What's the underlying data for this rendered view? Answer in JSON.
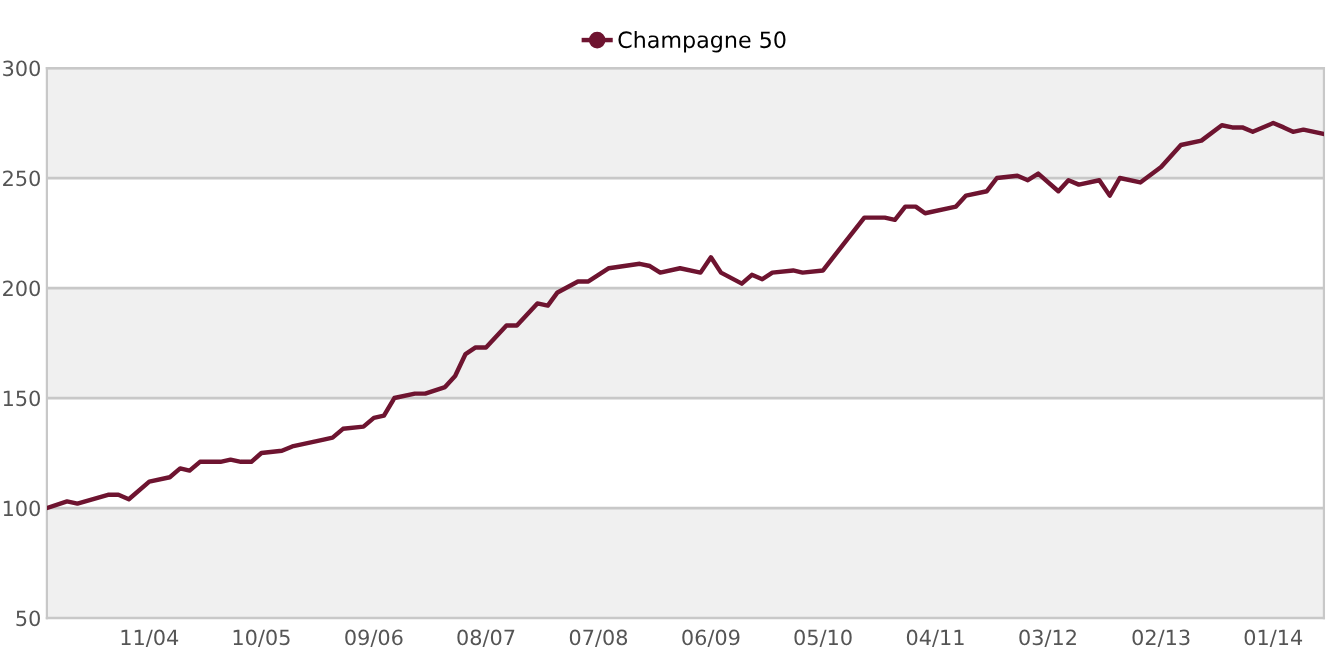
{
  "chart_data": {
    "type": "line",
    "x": [
      "2004-01",
      "2004-03",
      "2004-04",
      "2004-07",
      "2004-08",
      "2004-09",
      "2004-11",
      "2005-01",
      "2005-02",
      "2005-03",
      "2005-04",
      "2005-06",
      "2005-07",
      "2005-08",
      "2005-09",
      "2005-10",
      "2005-12",
      "2006-01",
      "2006-04",
      "2006-05",
      "2006-06",
      "2006-08",
      "2006-09",
      "2006-10",
      "2006-11",
      "2007-01",
      "2007-02",
      "2007-04",
      "2007-05",
      "2007-06",
      "2007-07",
      "2007-08",
      "2007-10",
      "2007-11",
      "2008-01",
      "2008-02",
      "2008-03",
      "2008-05",
      "2008-06",
      "2008-08",
      "2008-11",
      "2008-12",
      "2009-01",
      "2009-03",
      "2009-05",
      "2009-06",
      "2009-07",
      "2009-09",
      "2009-10",
      "2009-11",
      "2009-12",
      "2010-02",
      "2010-03",
      "2010-05",
      "2010-07",
      "2010-09",
      "2010-11",
      "2010-12",
      "2011-01",
      "2011-02",
      "2011-03",
      "2011-06",
      "2011-07",
      "2011-09",
      "2011-10",
      "2011-12",
      "2012-01",
      "2012-02",
      "2012-04",
      "2012-05",
      "2012-06",
      "2012-08",
      "2012-09",
      "2012-10",
      "2012-12",
      "2013-02",
      "2013-04",
      "2013-06",
      "2013-08",
      "2013-09",
      "2013-10",
      "2013-11",
      "2014-01",
      "2014-02",
      "2014-03",
      "2014-04",
      "2014-06"
    ],
    "series": [
      {
        "name": "Champagne 50",
        "color": "#6e1430",
        "values": [
          100,
          103,
          102,
          106,
          106,
          104,
          112,
          114,
          118,
          117,
          121,
          121,
          122,
          121,
          121,
          125,
          126,
          128,
          131,
          132,
          136,
          137,
          141,
          142,
          150,
          152,
          152,
          155,
          160,
          170,
          173,
          173,
          183,
          183,
          193,
          192,
          198,
          203,
          203,
          209,
          211,
          210,
          207,
          209,
          207,
          214,
          207,
          202,
          206,
          204,
          207,
          208,
          207,
          208,
          220,
          232,
          232,
          231,
          237,
          237,
          234,
          237,
          242,
          244,
          250,
          251,
          249,
          252,
          244,
          249,
          247,
          249,
          242,
          250,
          248,
          255,
          265,
          267,
          274,
          273,
          273,
          271,
          275,
          273,
          271,
          272,
          270
        ]
      }
    ],
    "xlim": [
      "2004-01",
      "2014-06"
    ],
    "xticks": [
      {
        "value": "2004-11",
        "label": "11/04"
      },
      {
        "value": "2005-10",
        "label": "10/05"
      },
      {
        "value": "2006-09",
        "label": "09/06"
      },
      {
        "value": "2007-08",
        "label": "08/07"
      },
      {
        "value": "2008-07",
        "label": "07/08"
      },
      {
        "value": "2009-06",
        "label": "06/09"
      },
      {
        "value": "2010-05",
        "label": "05/10"
      },
      {
        "value": "2011-04",
        "label": "04/11"
      },
      {
        "value": "2012-03",
        "label": "03/12"
      },
      {
        "value": "2013-02",
        "label": "02/13"
      },
      {
        "value": "2014-01",
        "label": "01/14"
      }
    ],
    "ylim": [
      50,
      300
    ],
    "yticks": [
      50,
      100,
      150,
      200,
      250,
      300
    ],
    "grid": "y",
    "legend": "top",
    "line_style": "solid"
  }
}
